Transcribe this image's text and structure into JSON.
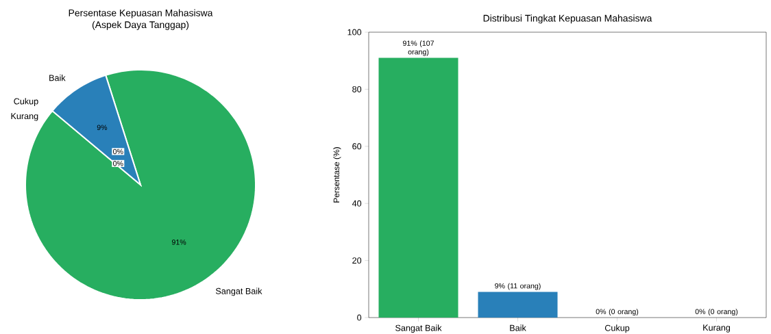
{
  "chart_data": [
    {
      "type": "pie",
      "title": "Persentase Kepuasan Mahasiswa",
      "subtitle": "(Aspek Daya Tanggap)",
      "categories": [
        "Sangat Baik",
        "Baik",
        "Cukup",
        "Kurang"
      ],
      "values": [
        91,
        9,
        0,
        0
      ],
      "colors": [
        "#27ae60",
        "#2980b9",
        "#f39c12",
        "#e74c3c"
      ],
      "value_labels": [
        "91%",
        "9%",
        "0%",
        "0%"
      ]
    },
    {
      "type": "bar",
      "title": "Distribusi Tingkat Kepuasan Mahasiswa",
      "ylabel": "Persentase (%)",
      "categories": [
        "Sangat Baik",
        "Baik",
        "Cukup",
        "Kurang"
      ],
      "values": [
        91,
        9,
        0,
        0
      ],
      "colors": [
        "#27ae60",
        "#2980b9",
        "#f39c12",
        "#e74c3c"
      ],
      "value_labels": [
        "91% (107 orang)",
        "9% (11 orang)",
        "0% (0 orang)",
        "0% (0 orang)"
      ],
      "ylim": [
        0,
        100
      ],
      "yticks": [
        0,
        20,
        40,
        60,
        80,
        100
      ],
      "grid": false
    }
  ]
}
